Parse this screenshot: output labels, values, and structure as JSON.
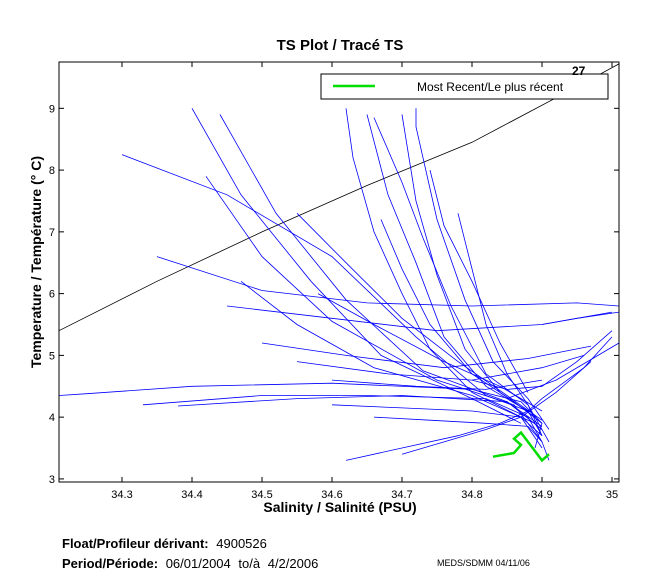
{
  "chart_data": {
    "type": "line",
    "title": "TS Plot / Tracé TS",
    "xlabel": "Salinity / Salinité (PSU)",
    "ylabel": "Temperature / Température (° C)",
    "xlim": [
      34.21,
      35.01
    ],
    "ylim": [
      2.95,
      9.75
    ],
    "xticks": [
      34.3,
      34.4,
      34.5,
      34.6,
      34.7,
      34.8,
      34.9,
      35
    ],
    "xtick_labels": [
      "34.3",
      "34.4",
      "34.5",
      "34.6",
      "34.7",
      "34.8",
      "34.9",
      "35"
    ],
    "yticks": [
      3,
      4,
      5,
      6,
      7,
      8,
      9
    ],
    "ytick_labels": [
      "3",
      "4",
      "5",
      "6",
      "7",
      "8",
      "9"
    ],
    "isopycnal": {
      "label": "27",
      "points": [
        [
          34.21,
          5.4
        ],
        [
          34.35,
          6.2
        ],
        [
          34.5,
          7.0
        ],
        [
          34.65,
          7.75
        ],
        [
          34.8,
          8.45
        ],
        [
          34.95,
          9.35
        ],
        [
          35.01,
          9.72
        ]
      ]
    },
    "legend": {
      "entry": "Most Recent/Le plus récent",
      "position": "top-right"
    },
    "series_colors": {
      "profiles": "#0000ff",
      "most_recent": "#00dd00",
      "isopycnal": "#000000"
    },
    "profiles": [
      [
        [
          34.21,
          4.35
        ],
        [
          34.25,
          4.38
        ],
        [
          34.4,
          4.5
        ],
        [
          34.6,
          4.55
        ],
        [
          34.8,
          4.45
        ],
        [
          34.87,
          4.25
        ],
        [
          34.9,
          3.9
        ],
        [
          34.89,
          3.5
        ]
      ],
      [
        [
          34.33,
          4.2
        ],
        [
          34.5,
          4.35
        ],
        [
          34.65,
          4.35
        ],
        [
          34.82,
          4.3
        ],
        [
          34.88,
          4.0
        ],
        [
          34.9,
          3.6
        ]
      ],
      [
        [
          34.38,
          4.18
        ],
        [
          34.55,
          4.3
        ],
        [
          34.7,
          4.35
        ],
        [
          34.85,
          4.25
        ],
        [
          34.9,
          3.8
        ]
      ],
      [
        [
          34.3,
          8.25
        ],
        [
          34.45,
          7.6
        ],
        [
          34.6,
          6.6
        ],
        [
          34.72,
          5.3
        ],
        [
          34.82,
          4.35
        ],
        [
          34.88,
          4.1
        ],
        [
          34.9,
          3.7
        ]
      ],
      [
        [
          34.4,
          9.0
        ],
        [
          34.47,
          7.6
        ],
        [
          34.57,
          6.2
        ],
        [
          34.67,
          5.0
        ],
        [
          34.8,
          4.3
        ],
        [
          34.87,
          3.9
        ]
      ],
      [
        [
          34.44,
          8.9
        ],
        [
          34.52,
          7.3
        ],
        [
          34.62,
          5.9
        ],
        [
          34.73,
          4.75
        ],
        [
          34.85,
          4.25
        ],
        [
          34.9,
          3.85
        ]
      ],
      [
        [
          34.42,
          7.9
        ],
        [
          34.5,
          6.6
        ],
        [
          34.6,
          5.55
        ],
        [
          34.75,
          4.6
        ],
        [
          34.86,
          4.2
        ],
        [
          34.9,
          3.6
        ]
      ],
      [
        [
          34.47,
          6.2
        ],
        [
          34.55,
          5.5
        ],
        [
          34.66,
          4.8
        ],
        [
          34.8,
          4.35
        ],
        [
          34.89,
          3.9
        ]
      ],
      [
        [
          34.62,
          9.0
        ],
        [
          34.63,
          8.2
        ],
        [
          34.66,
          7.0
        ],
        [
          34.7,
          6.0
        ],
        [
          34.74,
          5.1
        ],
        [
          34.8,
          4.4
        ],
        [
          34.87,
          4.0
        ],
        [
          34.9,
          3.5
        ]
      ],
      [
        [
          34.65,
          8.9
        ],
        [
          34.68,
          7.6
        ],
        [
          34.72,
          6.5
        ],
        [
          34.76,
          5.3
        ],
        [
          34.82,
          4.5
        ],
        [
          34.88,
          4.1
        ]
      ],
      [
        [
          34.66,
          8.85
        ],
        [
          34.7,
          7.8
        ],
        [
          34.73,
          6.9
        ],
        [
          34.77,
          5.8
        ],
        [
          34.82,
          4.7
        ],
        [
          34.88,
          4.2
        ],
        [
          34.9,
          3.7
        ]
      ],
      [
        [
          34.7,
          8.9
        ],
        [
          34.72,
          7.5
        ],
        [
          34.75,
          6.3
        ],
        [
          34.79,
          5.1
        ],
        [
          34.84,
          4.4
        ],
        [
          34.89,
          4.0
        ]
      ],
      [
        [
          34.72,
          9.0
        ],
        [
          34.72,
          8.7
        ],
        [
          34.75,
          7.2
        ],
        [
          34.79,
          5.9
        ],
        [
          34.83,
          4.9
        ],
        [
          34.88,
          4.3
        ],
        [
          34.91,
          3.8
        ]
      ],
      [
        [
          34.67,
          7.2
        ],
        [
          34.7,
          6.4
        ],
        [
          34.74,
          5.5
        ],
        [
          34.8,
          4.7
        ],
        [
          34.86,
          4.25
        ],
        [
          34.9,
          3.9
        ]
      ],
      [
        [
          34.55,
          7.3
        ],
        [
          34.62,
          6.5
        ],
        [
          34.7,
          5.6
        ],
        [
          34.78,
          4.9
        ],
        [
          34.85,
          4.35
        ],
        [
          34.9,
          3.95
        ]
      ],
      [
        [
          34.35,
          6.6
        ],
        [
          34.5,
          6.05
        ],
        [
          34.65,
          5.85
        ],
        [
          34.8,
          5.8
        ],
        [
          34.95,
          5.85
        ],
        [
          35.01,
          5.8
        ]
      ],
      [
        [
          34.45,
          5.8
        ],
        [
          34.6,
          5.6
        ],
        [
          34.75,
          5.4
        ],
        [
          34.9,
          5.5
        ],
        [
          35.0,
          5.7
        ]
      ],
      [
        [
          34.5,
          5.2
        ],
        [
          34.62,
          5.0
        ],
        [
          34.76,
          4.8
        ],
        [
          34.88,
          4.95
        ],
        [
          34.97,
          5.15
        ]
      ],
      [
        [
          34.55,
          4.9
        ],
        [
          34.68,
          4.7
        ],
        [
          34.8,
          4.6
        ],
        [
          34.9,
          4.8
        ],
        [
          34.96,
          5.0
        ]
      ],
      [
        [
          34.6,
          4.6
        ],
        [
          34.72,
          4.5
        ],
        [
          34.82,
          4.45
        ],
        [
          34.9,
          4.6
        ]
      ],
      [
        [
          34.62,
          3.3
        ],
        [
          34.7,
          3.5
        ],
        [
          34.78,
          3.7
        ],
        [
          34.84,
          3.9
        ],
        [
          34.88,
          4.1
        ],
        [
          34.9,
          4.3
        ],
        [
          34.96,
          4.8
        ],
        [
          35.0,
          5.3
        ]
      ],
      [
        [
          34.7,
          3.4
        ],
        [
          34.76,
          3.6
        ],
        [
          34.82,
          3.8
        ],
        [
          34.87,
          4.0
        ],
        [
          34.92,
          4.4
        ],
        [
          34.97,
          4.9
        ]
      ],
      [
        [
          34.66,
          4.0
        ],
        [
          34.74,
          3.95
        ],
        [
          34.82,
          3.9
        ],
        [
          34.88,
          3.85
        ],
        [
          34.9,
          3.6
        ],
        [
          34.91,
          3.3
        ]
      ],
      [
        [
          34.6,
          4.2
        ],
        [
          34.7,
          4.15
        ],
        [
          34.8,
          4.1
        ],
        [
          34.87,
          4.0
        ],
        [
          34.9,
          3.7
        ]
      ],
      [
        [
          34.8,
          4.6
        ],
        [
          34.85,
          4.45
        ],
        [
          34.9,
          4.5
        ],
        [
          34.95,
          4.9
        ],
        [
          35.0,
          5.4
        ]
      ],
      [
        [
          34.78,
          7.3
        ],
        [
          34.8,
          6.4
        ],
        [
          34.82,
          5.5
        ],
        [
          34.85,
          4.7
        ],
        [
          34.88,
          4.2
        ],
        [
          34.91,
          3.6
        ]
      ],
      [
        [
          34.74,
          8.0
        ],
        [
          34.76,
          7.1
        ],
        [
          34.8,
          6.2
        ],
        [
          34.84,
          5.2
        ],
        [
          34.88,
          4.4
        ]
      ],
      [
        [
          34.58,
          6.0
        ],
        [
          34.66,
          5.5
        ],
        [
          34.76,
          4.9
        ],
        [
          34.84,
          4.5
        ],
        [
          34.9,
          4.1
        ]
      ],
      [
        [
          34.9,
          5.5
        ],
        [
          34.95,
          5.6
        ],
        [
          35.01,
          5.7
        ]
      ],
      [
        [
          34.85,
          4.3
        ],
        [
          34.92,
          4.6
        ],
        [
          34.98,
          5.0
        ],
        [
          35.01,
          5.2
        ]
      ]
    ],
    "most_recent": [
      [
        34.83,
        3.36
      ],
      [
        34.86,
        3.42
      ],
      [
        34.87,
        3.55
      ],
      [
        34.86,
        3.65
      ],
      [
        34.87,
        3.75
      ],
      [
        34.88,
        3.6
      ],
      [
        34.89,
        3.45
      ],
      [
        34.9,
        3.3
      ],
      [
        34.91,
        3.4
      ]
    ]
  },
  "footer": {
    "float_label": "Float/Profileur dérivant:",
    "float_id": "4900526",
    "period_label": "Period/Période:",
    "period_start": "06/01/2004",
    "period_sep": "to/à",
    "period_end": "4/2/2006",
    "credit": "MEDS/SDMM  04/11/06"
  }
}
